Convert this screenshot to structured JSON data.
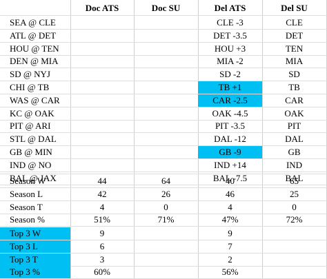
{
  "headers": [
    "Doc ATS",
    "Doc SU",
    "Del ATS",
    "Del SU"
  ],
  "accent_color": "#00bff3",
  "games": [
    {
      "matchup": "SEA @ CLE",
      "del_ats": "CLE -3",
      "del_su": "CLE",
      "highlight": false
    },
    {
      "matchup": "ATL @ DET",
      "del_ats": "DET -3.5",
      "del_su": "DET",
      "highlight": false
    },
    {
      "matchup": "HOU @ TEN",
      "del_ats": "HOU +3",
      "del_su": "TEN",
      "highlight": false
    },
    {
      "matchup": "DEN @ MIA",
      "del_ats": "MIA -2",
      "del_su": "MIA",
      "highlight": false
    },
    {
      "matchup": "SD @ NYJ",
      "del_ats": "SD -2",
      "del_su": "SD",
      "highlight": false
    },
    {
      "matchup": "CHI @ TB",
      "del_ats": "TB +1",
      "del_su": "TB",
      "highlight": true
    },
    {
      "matchup": "WAS @ CAR",
      "del_ats": "CAR -2.5",
      "del_su": "CAR",
      "highlight": true
    },
    {
      "matchup": "KC @ OAK",
      "del_ats": "OAK -4.5",
      "del_su": "OAK",
      "highlight": false
    },
    {
      "matchup": "PIT @ ARI",
      "del_ats": "PIT -3.5",
      "del_su": "PIT",
      "highlight": false
    },
    {
      "matchup": "STL @ DAL",
      "del_ats": "DAL -12",
      "del_su": "DAL",
      "highlight": false
    },
    {
      "matchup": "GB @ MIN",
      "del_ats": "GB -9",
      "del_su": "GB",
      "highlight": true
    },
    {
      "matchup": "IND @ NO",
      "del_ats": "IND +14",
      "del_su": "IND",
      "highlight": false
    },
    {
      "matchup": "BAL @ JAX",
      "del_ats": "BAL -7.5",
      "del_su": "BAL",
      "highlight": false
    }
  ],
  "season": [
    {
      "label": "Season W",
      "doc_ats": "44",
      "doc_su": "64",
      "del_ats": "40",
      "del_su": "65"
    },
    {
      "label": "Season L",
      "doc_ats": "42",
      "doc_su": "26",
      "del_ats": "46",
      "del_su": "25"
    },
    {
      "label": "Season T",
      "doc_ats": "4",
      "doc_su": "0",
      "del_ats": "4",
      "del_su": "0"
    },
    {
      "label": "Season %",
      "doc_ats": "51%",
      "doc_su": "71%",
      "del_ats": "47%",
      "del_su": "72%"
    }
  ],
  "top3": [
    {
      "label": "Top 3 W",
      "doc_ats": "9",
      "del_ats": "9"
    },
    {
      "label": "Top 3 L",
      "doc_ats": "6",
      "del_ats": "7"
    },
    {
      "label": "Top 3 T",
      "doc_ats": "3",
      "del_ats": "2"
    },
    {
      "label": "Top 3 %",
      "doc_ats": "60%",
      "del_ats": "56%"
    }
  ]
}
